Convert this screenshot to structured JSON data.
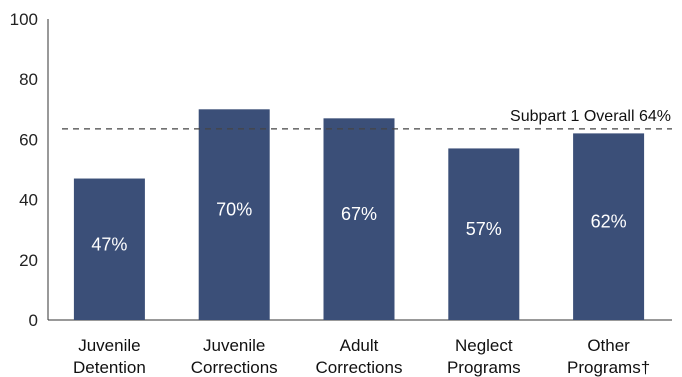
{
  "chart_data": {
    "type": "bar",
    "title": "",
    "xlabel": "",
    "ylabel": "",
    "ylim": [
      0,
      100
    ],
    "yticks": [
      0,
      20,
      40,
      60,
      80,
      100
    ],
    "categories": [
      [
        "Juvenile",
        "Detention"
      ],
      [
        "Juvenile",
        "Corrections"
      ],
      [
        "Adult",
        "Corrections"
      ],
      [
        "Neglect",
        "Programs"
      ],
      [
        "Other",
        "Programs†"
      ]
    ],
    "values": [
      47,
      70,
      67,
      57,
      62
    ],
    "data_labels": [
      "47%",
      "70%",
      "67%",
      "57%",
      "62%"
    ],
    "reference_line": {
      "value": 63.5,
      "label": "Subpart 1 Overall 64%",
      "style": "dashed"
    },
    "bar_color": "#3b4f78",
    "grid": false,
    "legend": "none"
  }
}
